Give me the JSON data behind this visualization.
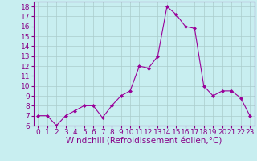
{
  "x": [
    0,
    1,
    2,
    3,
    4,
    5,
    6,
    7,
    8,
    9,
    10,
    11,
    12,
    13,
    14,
    15,
    16,
    17,
    18,
    19,
    20,
    21,
    22,
    23
  ],
  "y": [
    7.0,
    7.0,
    6.0,
    7.0,
    7.5,
    8.0,
    8.0,
    6.8,
    8.0,
    9.0,
    9.5,
    12.0,
    11.8,
    13.0,
    18.0,
    17.2,
    16.0,
    15.8,
    10.0,
    9.0,
    9.5,
    9.5,
    8.8,
    7.0
  ],
  "line_color": "#990099",
  "marker": "D",
  "marker_size": 2.0,
  "bg_color": "#c8eef0",
  "grid_color": "#aacccc",
  "xlabel": "Windchill (Refroidissement éolien,°C)",
  "ylim": [
    6,
    18.5
  ],
  "xlim": [
    -0.5,
    23.5
  ],
  "yticks": [
    6,
    7,
    8,
    9,
    10,
    11,
    12,
    13,
    14,
    15,
    16,
    17,
    18
  ],
  "xticks": [
    0,
    1,
    2,
    3,
    4,
    5,
    6,
    7,
    8,
    9,
    10,
    11,
    12,
    13,
    14,
    15,
    16,
    17,
    18,
    19,
    20,
    21,
    22,
    23
  ],
  "tick_fontsize": 6.5,
  "xlabel_fontsize": 7.5,
  "tick_color": "#880088",
  "label_color": "#880088",
  "spine_color": "#880088"
}
